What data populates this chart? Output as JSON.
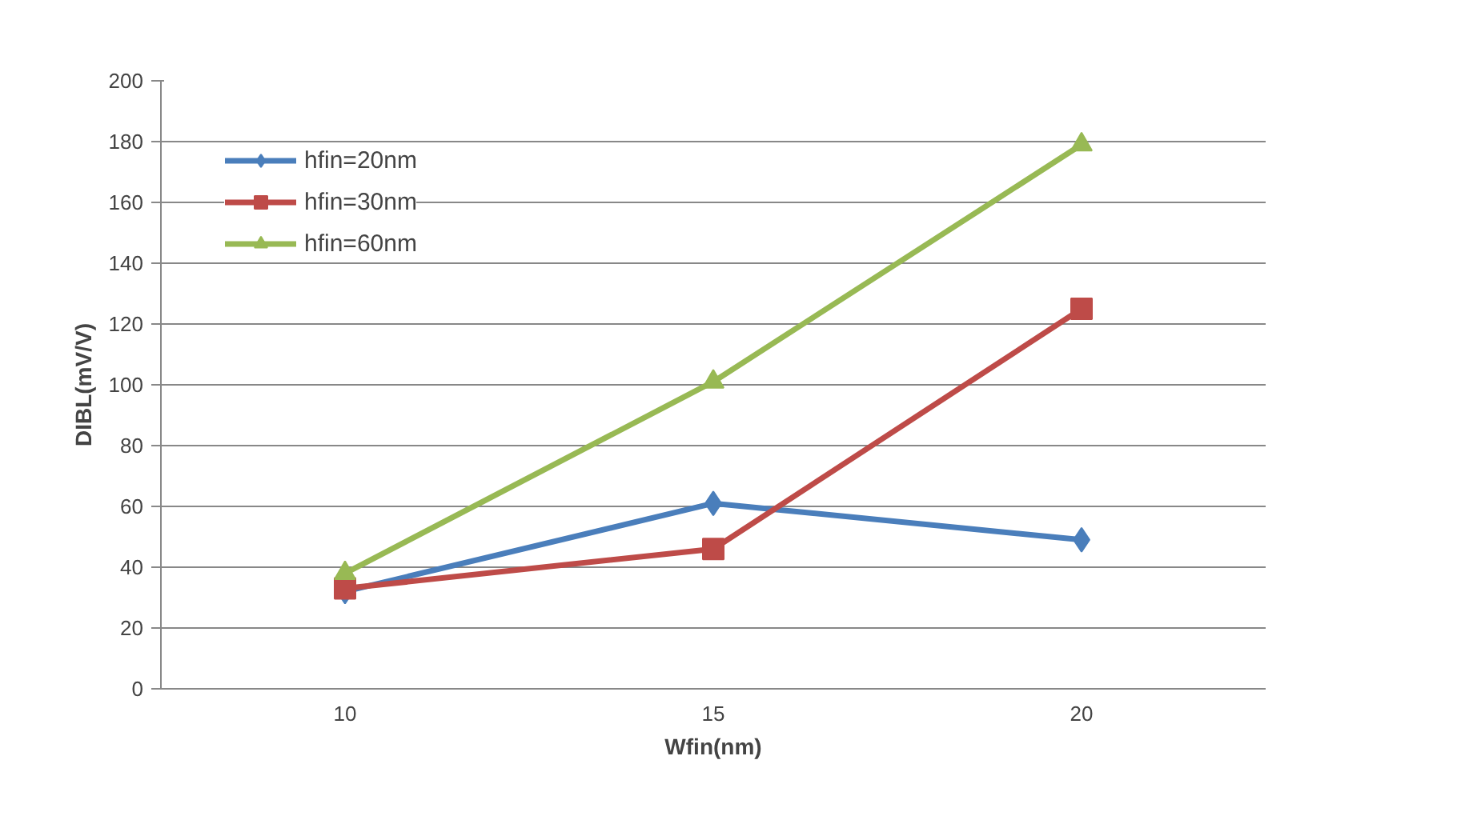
{
  "chart_data": {
    "type": "line",
    "xlabel": "Wfin(nm)",
    "ylabel": "DIBL(mV/V)",
    "categories": [
      "10",
      "15",
      "20"
    ],
    "series": [
      {
        "name": "hfin=20nm",
        "color": "#4a7ebb",
        "marker": "diamond",
        "values": [
          32,
          61,
          49
        ]
      },
      {
        "name": "hfin=30nm",
        "color": "#be4b48",
        "marker": "square",
        "values": [
          33,
          46,
          125
        ]
      },
      {
        "name": "hfin=60nm",
        "color": "#98b954",
        "marker": "triangle",
        "values": [
          38,
          101,
          179
        ]
      }
    ],
    "ylim": [
      0,
      200
    ],
    "yticks": [
      0,
      20,
      40,
      60,
      80,
      100,
      120,
      140,
      160,
      180,
      200
    ],
    "grid": "y",
    "legend": "top left",
    "line_style": "solid"
  }
}
